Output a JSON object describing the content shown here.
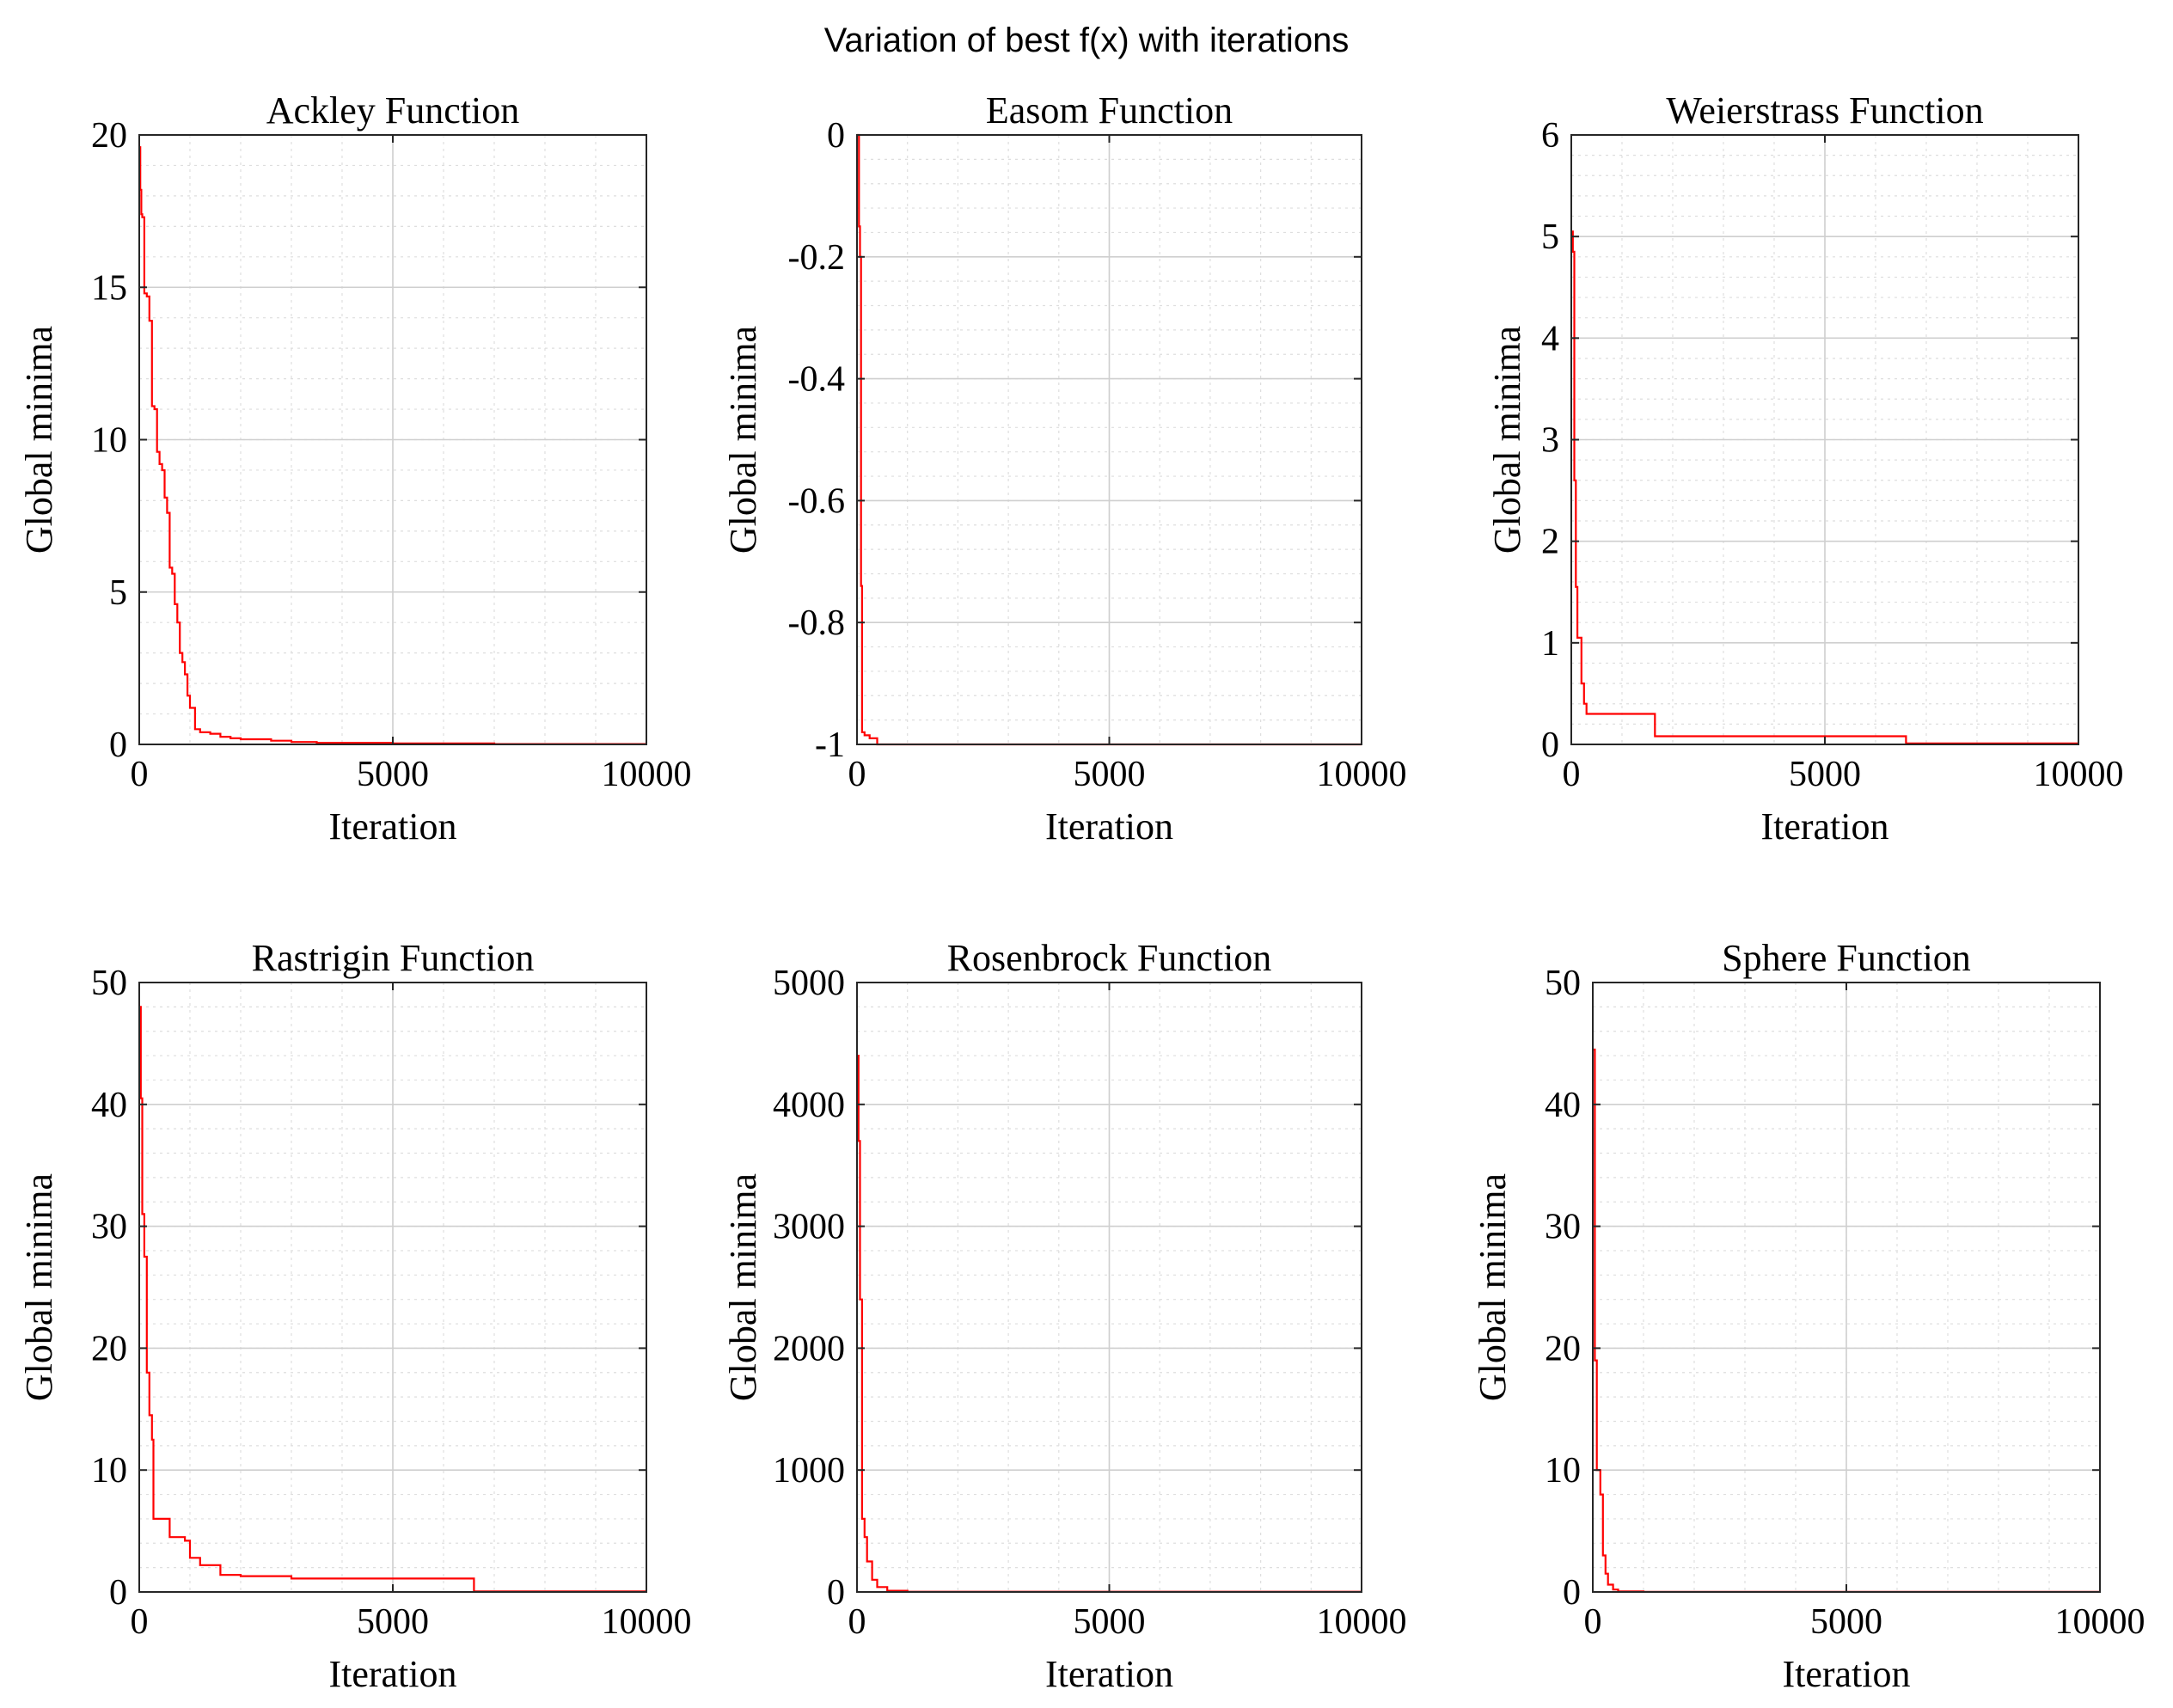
{
  "figure": {
    "title": "Variation of best f(x) with iterations"
  },
  "colors": {
    "series": "#ff0000",
    "axes": "#262626",
    "grid": "#cfcfcf"
  },
  "chart_data": [
    {
      "type": "line",
      "title": "Ackley Function",
      "xlabel": "Iteration",
      "ylabel": "Global minima",
      "xlim": [
        0,
        10000
      ],
      "ylim": [
        0,
        20
      ],
      "xticks": [
        0,
        5000,
        10000
      ],
      "xtick_labels": [
        "0",
        "5000",
        "10000"
      ],
      "yticks": [
        0,
        5,
        10,
        15,
        20
      ],
      "ytick_labels": [
        "0",
        "5",
        "10",
        "15",
        "20"
      ],
      "grid": true,
      "minor_grid": true,
      "series": [
        {
          "step": true,
          "x": [
            0,
            20,
            40,
            60,
            100,
            150,
            200,
            250,
            300,
            350,
            400,
            450,
            500,
            550,
            600,
            650,
            700,
            750,
            800,
            850,
            900,
            950,
            1000,
            1100,
            1200,
            1400,
            1600,
            1800,
            2000,
            2600,
            3000,
            3500,
            5000,
            7000,
            10000
          ],
          "y": [
            19.6,
            18.2,
            17.4,
            17.3,
            14.8,
            14.7,
            13.9,
            11.1,
            11.0,
            9.6,
            9.2,
            9.0,
            8.1,
            7.6,
            5.8,
            5.6,
            4.6,
            4.0,
            3.0,
            2.7,
            2.3,
            1.6,
            1.2,
            0.5,
            0.4,
            0.35,
            0.25,
            0.2,
            0.17,
            0.12,
            0.08,
            0.05,
            0.03,
            0.01,
            0.01
          ]
        }
      ]
    },
    {
      "type": "line",
      "title": "Easom Function",
      "xlabel": "Iteration",
      "ylabel": "Global minima",
      "xlim": [
        0,
        10000
      ],
      "ylim": [
        -1,
        0
      ],
      "xticks": [
        0,
        5000,
        10000
      ],
      "xtick_labels": [
        "0",
        "5000",
        "10000"
      ],
      "yticks": [
        -1,
        -0.8,
        -0.6,
        -0.4,
        -0.2,
        0
      ],
      "ytick_labels": [
        "-1",
        "-0.8",
        "-0.6",
        "-0.4",
        "-0.2",
        "0"
      ],
      "grid": true,
      "minor_grid": true,
      "series": [
        {
          "step": true,
          "x": [
            0,
            40,
            60,
            80,
            100,
            150,
            250,
            400,
            10000
          ],
          "y": [
            0,
            -0.15,
            -0.2,
            -0.74,
            -0.98,
            -0.985,
            -0.99,
            -1.0,
            -1.0
          ]
        }
      ]
    },
    {
      "type": "line",
      "title": "Weierstrass Function",
      "xlabel": "Iteration",
      "ylabel": "Global minima",
      "xlim": [
        0,
        10000
      ],
      "ylim": [
        0,
        6
      ],
      "xticks": [
        0,
        5000,
        10000
      ],
      "xtick_labels": [
        "0",
        "5000",
        "10000"
      ],
      "yticks": [
        0,
        1,
        2,
        3,
        4,
        5,
        6
      ],
      "ytick_labels": [
        "0",
        "1",
        "2",
        "3",
        "4",
        "5",
        "6"
      ],
      "grid": true,
      "minor_grid": true,
      "series": [
        {
          "step": true,
          "x": [
            0,
            30,
            60,
            90,
            120,
            200,
            250,
            300,
            1650,
            6600,
            10000
          ],
          "y": [
            5.05,
            4.85,
            2.6,
            1.55,
            1.05,
            0.6,
            0.4,
            0.3,
            0.08,
            0.01,
            0.01
          ]
        }
      ]
    },
    {
      "type": "line",
      "title": "Rastrigin Function",
      "xlabel": "Iteration",
      "ylabel": "Global minima",
      "xlim": [
        0,
        10000
      ],
      "ylim": [
        0,
        50
      ],
      "xticks": [
        0,
        5000,
        10000
      ],
      "xtick_labels": [
        "0",
        "5000",
        "10000"
      ],
      "yticks": [
        0,
        10,
        20,
        30,
        40,
        50
      ],
      "ytick_labels": [
        "0",
        "10",
        "20",
        "30",
        "40",
        "50"
      ],
      "grid": true,
      "minor_grid": true,
      "series": [
        {
          "step": true,
          "x": [
            0,
            30,
            60,
            100,
            150,
            200,
            250,
            280,
            600,
            900,
            1000,
            1200,
            1600,
            2000,
            3000,
            6600,
            10000
          ],
          "y": [
            48,
            40.5,
            31,
            27.5,
            18,
            14.5,
            12.5,
            6.0,
            4.5,
            4.2,
            2.8,
            2.2,
            1.4,
            1.3,
            1.1,
            0.05,
            0.05
          ]
        }
      ]
    },
    {
      "type": "line",
      "title": "Rosenbrock Function",
      "xlabel": "Iteration",
      "ylabel": "Global minima",
      "xlim": [
        0,
        10000
      ],
      "ylim": [
        0,
        5000
      ],
      "xticks": [
        0,
        5000,
        10000
      ],
      "xtick_labels": [
        "0",
        "5000",
        "10000"
      ],
      "yticks": [
        0,
        1000,
        2000,
        3000,
        4000,
        5000
      ],
      "ytick_labels": [
        "0",
        "1000",
        "2000",
        "3000",
        "4000",
        "5000"
      ],
      "grid": true,
      "minor_grid": true,
      "series": [
        {
          "step": true,
          "x": [
            0,
            30,
            60,
            100,
            150,
            200,
            300,
            400,
            600,
            1000,
            10000
          ],
          "y": [
            4400,
            3700,
            2400,
            600,
            450,
            250,
            100,
            40,
            10,
            2,
            2
          ]
        }
      ]
    },
    {
      "type": "line",
      "title": "Sphere Function",
      "xlabel": "Iteration",
      "ylabel": "Global minima",
      "xlim": [
        0,
        10000
      ],
      "ylim": [
        0,
        50
      ],
      "xticks": [
        0,
        5000,
        10000
      ],
      "xtick_labels": [
        "0",
        "5000",
        "10000"
      ],
      "yticks": [
        0,
        10,
        20,
        30,
        40,
        50
      ],
      "ytick_labels": [
        "0",
        "10",
        "20",
        "30",
        "40",
        "50"
      ],
      "grid": true,
      "minor_grid": true,
      "series": [
        {
          "step": true,
          "x": [
            0,
            40,
            80,
            150,
            200,
            250,
            300,
            400,
            500,
            1000,
            10000
          ],
          "y": [
            44.5,
            19,
            10,
            8,
            3,
            1.5,
            0.6,
            0.2,
            0.05,
            0.01,
            0.01
          ]
        }
      ]
    }
  ]
}
